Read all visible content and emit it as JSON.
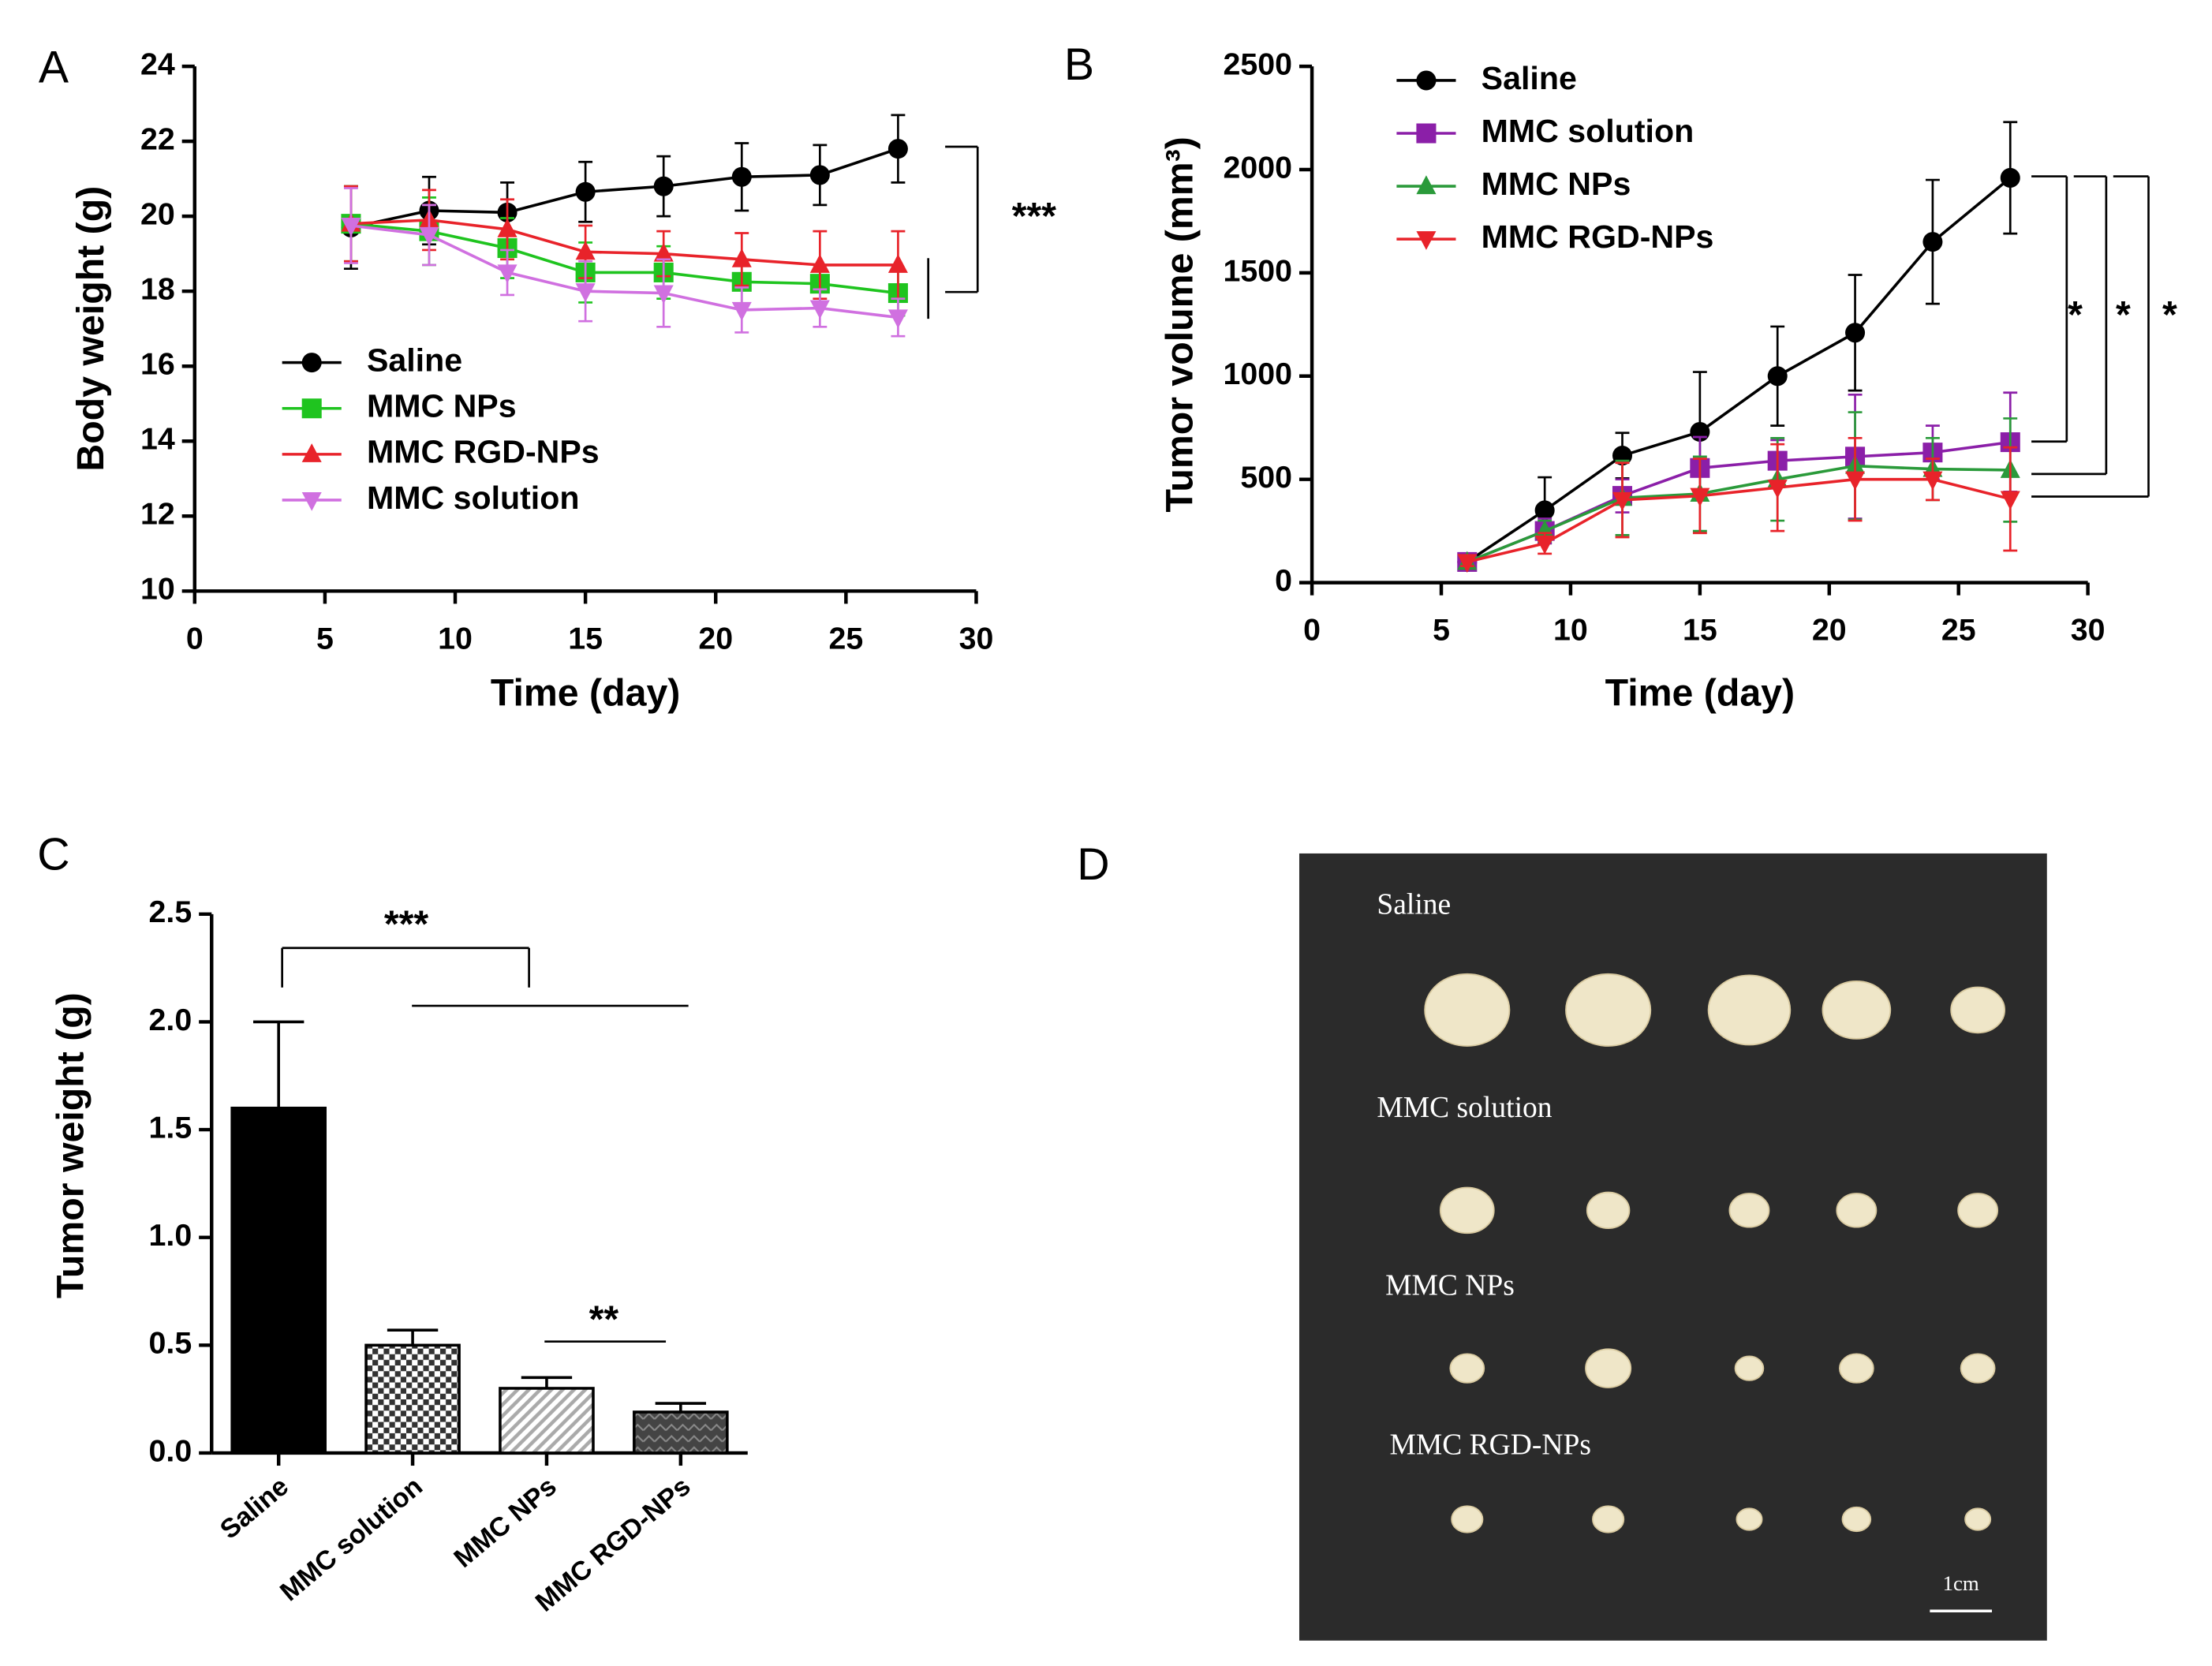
{
  "chart_data": [
    {
      "type": "line",
      "panel": "A",
      "xlabel": "Time (day)",
      "ylabel": "Body weight (g)",
      "x": [
        6,
        9,
        12,
        15,
        18,
        21,
        24,
        27
      ],
      "xlim": [
        0,
        30
      ],
      "xticks": [
        0,
        5,
        10,
        15,
        20,
        25,
        30
      ],
      "ylim": [
        10,
        24
      ],
      "yticks": [
        10,
        12,
        14,
        16,
        18,
        20,
        22,
        24
      ],
      "series": [
        {
          "name": "Saline",
          "color": "#000000",
          "marker": "circle",
          "values": [
            19.7,
            20.15,
            20.1,
            20.65,
            20.8,
            21.05,
            21.1,
            21.8
          ],
          "errors": [
            1.1,
            0.9,
            0.8,
            0.8,
            0.8,
            0.9,
            0.8,
            0.9
          ]
        },
        {
          "name": "MMC NPs",
          "color": "#1fc41f",
          "marker": "square",
          "values": [
            19.8,
            19.6,
            19.15,
            18.5,
            18.5,
            18.25,
            18.2,
            17.95
          ],
          "errors": [
            1.0,
            0.9,
            0.8,
            0.8,
            0.7,
            0.6,
            0.5,
            0.6
          ]
        },
        {
          "name": "MMC RGD-NPs",
          "color": "#e8232a",
          "marker": "triangle-up",
          "values": [
            19.8,
            19.9,
            19.65,
            19.05,
            19.0,
            18.85,
            18.7,
            18.7
          ],
          "errors": [
            1.0,
            0.8,
            0.8,
            0.7,
            0.6,
            0.7,
            0.9,
            0.9
          ]
        },
        {
          "name": "MMC solution",
          "color": "#d070e0",
          "marker": "triangle-down",
          "values": [
            19.75,
            19.5,
            18.5,
            18.0,
            17.95,
            17.5,
            17.55,
            17.3
          ],
          "errors": [
            1.0,
            0.8,
            0.6,
            0.8,
            0.9,
            0.6,
            0.5,
            0.5
          ]
        }
      ],
      "annotations": [
        "***"
      ]
    },
    {
      "type": "line",
      "panel": "B",
      "xlabel": "Time (day)",
      "ylabel": "Tumor volume (mm³)",
      "x": [
        6,
        9,
        12,
        15,
        18,
        21,
        24,
        27
      ],
      "xlim": [
        0,
        30
      ],
      "xticks": [
        0,
        5,
        10,
        15,
        20,
        25,
        30
      ],
      "ylim": [
        0,
        2500
      ],
      "yticks": [
        0,
        500,
        1000,
        1500,
        2000,
        2500
      ],
      "series": [
        {
          "name": "Saline",
          "color": "#000000",
          "marker": "circle",
          "values": [
            100,
            350,
            615,
            730,
            1000,
            1210,
            1650,
            1960
          ],
          "errors": [
            30,
            160,
            110,
            290,
            240,
            280,
            300,
            270
          ]
        },
        {
          "name": "MMC solution",
          "color": "#8b1fa8",
          "marker": "square",
          "values": [
            100,
            250,
            420,
            555,
            590,
            610,
            630,
            680
          ],
          "errors": [
            20,
            60,
            80,
            150,
            100,
            300,
            130,
            240
          ]
        },
        {
          "name": "MMC NPs",
          "color": "#2a9a3a",
          "marker": "triangle-up",
          "values": [
            100,
            250,
            410,
            430,
            500,
            565,
            550,
            545
          ],
          "errors": [
            20,
            50,
            180,
            180,
            200,
            260,
            150,
            250
          ]
        },
        {
          "name": "MMC RGD-NPs",
          "color": "#e8232a",
          "marker": "triangle-down",
          "values": [
            100,
            190,
            400,
            420,
            460,
            500,
            500,
            405
          ],
          "errors": [
            20,
            50,
            180,
            180,
            210,
            200,
            100,
            250
          ]
        }
      ],
      "annotations": [
        "*",
        "*",
        "*"
      ]
    },
    {
      "type": "bar",
      "panel": "C",
      "ylabel": "Tumor weight (g)",
      "categories": [
        "Saline",
        "MMC solution",
        "MMC NPs",
        "MMC RGD-NPs"
      ],
      "values": [
        1.6,
        0.5,
        0.3,
        0.19
      ],
      "errors": [
        0.4,
        0.07,
        0.05,
        0.04
      ],
      "colors": [
        "#000000",
        "#333333",
        "#aaaaaa",
        "#444444"
      ],
      "ylim": [
        0,
        2.5
      ],
      "yticks": [
        {
          "value": 0,
          "label": "0.0"
        },
        0.5,
        {
          "value": 1,
          "label": "1.0"
        },
        1.5,
        {
          "value": 2,
          "label": "2.0"
        },
        2.5
      ],
      "annotations": [
        "***",
        "**"
      ]
    }
  ],
  "photo": {
    "panel": "D",
    "rows": [
      "Saline",
      "MMC solution",
      "MMC NPs",
      "MMC RGD-NPs"
    ],
    "scale": "1cm"
  }
}
